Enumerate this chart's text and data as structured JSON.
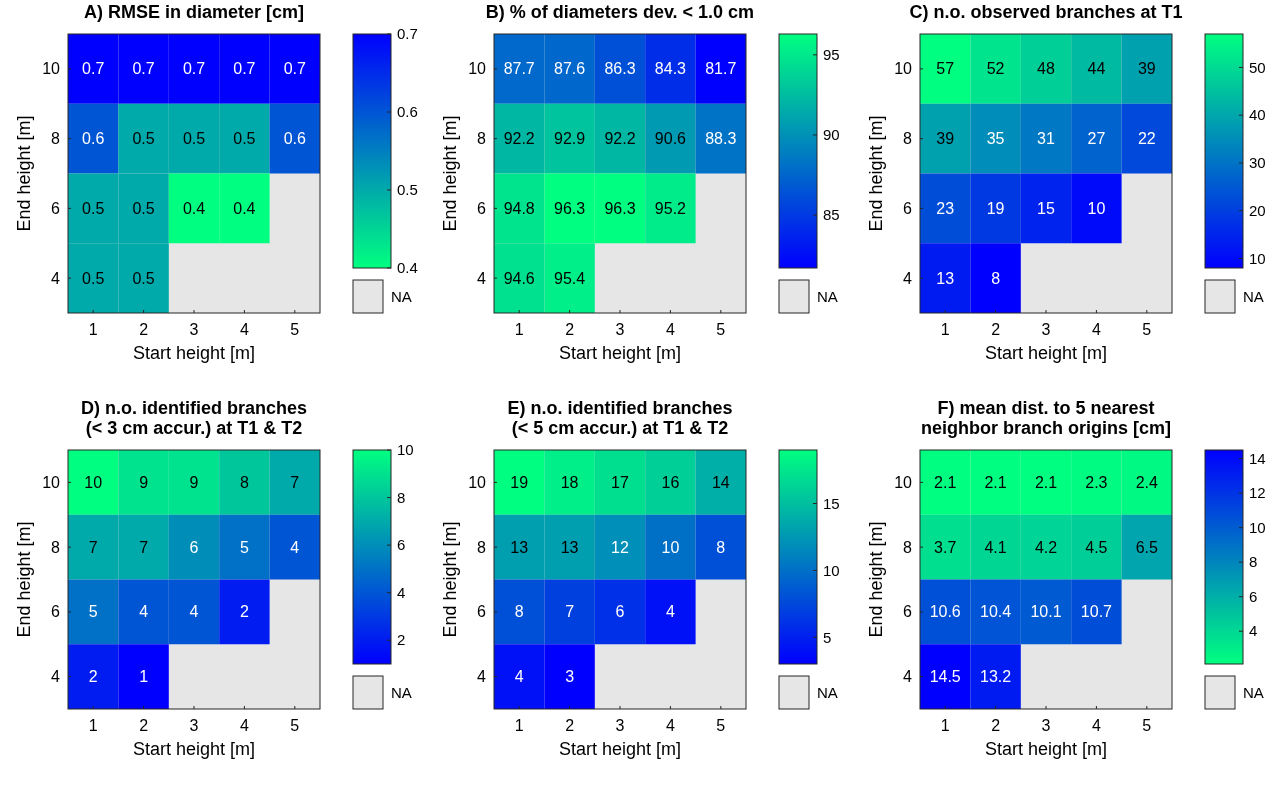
{
  "chart_data": [
    {
      "type": "heatmap",
      "title": "A) RMSE in diameter [cm]",
      "data_labels": true,
      "xlabel": "Start height [m]",
      "ylabel": "End height [m]",
      "categories": [
        "1",
        "2",
        "3",
        "4",
        "5"
      ],
      "y_categories": [
        "10",
        "8",
        "6",
        "4"
      ],
      "cells": [
        [
          0.7,
          0.7,
          0.7,
          0.7,
          0.7
        ],
        [
          0.6,
          0.5,
          0.5,
          0.5,
          0.6
        ],
        [
          0.5,
          0.5,
          0.4,
          0.4,
          null
        ],
        [
          0.5,
          0.5,
          null,
          null,
          null
        ]
      ],
      "clim": [
        0.4,
        0.7
      ],
      "cticks": [
        0.4,
        0.5,
        0.6,
        0.7
      ],
      "colors": [
        "#00ff80",
        "#0000ff"
      ],
      "annotations": [
        "NA"
      ]
    },
    {
      "type": "heatmap",
      "title": "B) % of diameters dev. < 1.0 cm",
      "data_labels": true,
      "xlabel": "Start height [m]",
      "ylabel": "End height [m]",
      "categories": [
        "1",
        "2",
        "3",
        "4",
        "5"
      ],
      "y_categories": [
        "10",
        "8",
        "6",
        "4"
      ],
      "cells": [
        [
          87.7,
          87.6,
          86.3,
          84.3,
          81.7
        ],
        [
          92.2,
          92.9,
          92.2,
          90.6,
          88.3
        ],
        [
          94.8,
          96.3,
          96.3,
          95.2,
          null
        ],
        [
          94.6,
          95.4,
          null,
          null,
          null
        ]
      ],
      "clim": [
        81.7,
        96.3
      ],
      "cticks": [
        85,
        90,
        95
      ],
      "colors": [
        "#0000ff",
        "#00ff80"
      ],
      "annotations": [
        "NA"
      ]
    },
    {
      "type": "heatmap",
      "title": "C) n.o. observed branches at T1",
      "data_labels": true,
      "xlabel": "Start height [m]",
      "ylabel": "End height [m]",
      "categories": [
        "1",
        "2",
        "3",
        "4",
        "5"
      ],
      "y_categories": [
        "10",
        "8",
        "6",
        "4"
      ],
      "cells": [
        [
          57,
          52,
          48,
          44,
          39
        ],
        [
          39,
          35,
          31,
          27,
          22
        ],
        [
          23,
          19,
          15,
          10,
          null
        ],
        [
          13,
          8,
          null,
          null,
          null
        ]
      ],
      "clim": [
        8,
        57
      ],
      "cticks": [
        10,
        20,
        30,
        40,
        50
      ],
      "colors": [
        "#0000ff",
        "#00ff80"
      ],
      "annotations": [
        "NA"
      ]
    },
    {
      "type": "heatmap",
      "title": "D) n.o. identified branches\n(< 3 cm accur.) at T1 & T2",
      "data_labels": true,
      "xlabel": "Start height [m]",
      "ylabel": "End height [m]",
      "categories": [
        "1",
        "2",
        "3",
        "4",
        "5"
      ],
      "y_categories": [
        "10",
        "8",
        "6",
        "4"
      ],
      "cells": [
        [
          10,
          9,
          9,
          8,
          7
        ],
        [
          7,
          7,
          6,
          5,
          4
        ],
        [
          5,
          4,
          4,
          2,
          null
        ],
        [
          2,
          1,
          null,
          null,
          null
        ]
      ],
      "clim": [
        1,
        10
      ],
      "cticks": [
        2,
        4,
        6,
        8,
        10
      ],
      "colors": [
        "#0000ff",
        "#00ff80"
      ],
      "annotations": [
        "NA"
      ]
    },
    {
      "type": "heatmap",
      "title": "E) n.o. identified branches\n(< 5 cm accur.) at T1 & T2",
      "data_labels": true,
      "xlabel": "Start height [m]",
      "ylabel": "End height [m]",
      "categories": [
        "1",
        "2",
        "3",
        "4",
        "5"
      ],
      "y_categories": [
        "10",
        "8",
        "6",
        "4"
      ],
      "cells": [
        [
          19,
          18,
          17,
          16,
          14
        ],
        [
          13,
          13,
          12,
          10,
          8
        ],
        [
          8,
          7,
          6,
          4,
          null
        ],
        [
          4,
          3,
          null,
          null,
          null
        ]
      ],
      "clim": [
        3,
        19
      ],
      "cticks": [
        5,
        10,
        15
      ],
      "colors": [
        "#0000ff",
        "#00ff80"
      ],
      "annotations": [
        "NA"
      ]
    },
    {
      "type": "heatmap",
      "title": "F) mean dist. to 5 nearest\nneighbor branch origins [cm]",
      "data_labels": true,
      "xlabel": "Start height [m]",
      "ylabel": "End height [m]",
      "categories": [
        "1",
        "2",
        "3",
        "4",
        "5"
      ],
      "y_categories": [
        "10",
        "8",
        "6",
        "4"
      ],
      "cells": [
        [
          2.1,
          2.1,
          2.1,
          2.3,
          2.4
        ],
        [
          3.7,
          4.1,
          4.2,
          4.5,
          6.5
        ],
        [
          10.6,
          10.4,
          10.1,
          10.7,
          null
        ],
        [
          14.5,
          13.2,
          null,
          null,
          null
        ]
      ],
      "clim": [
        2.1,
        14.5
      ],
      "cticks": [
        4,
        6,
        8,
        10,
        12,
        14
      ],
      "colors": [
        "#00ff80",
        "#0000ff"
      ],
      "annotations": [
        "NA"
      ]
    }
  ]
}
